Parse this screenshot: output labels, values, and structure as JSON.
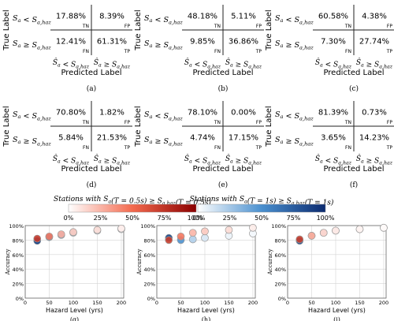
{
  "labels": {
    "true_label": "True Label",
    "predicted_label": "Predicted Label",
    "row_top": "S_a < S_{a,haz}",
    "row_bottom": "S_a ≥ S_{a,haz}",
    "col_left": "Ŝ_a < S_{a,haz}",
    "col_right": "Ŝ_a ≥ S_{a,haz}",
    "tn": "TN",
    "fp": "FP",
    "fn": "FN",
    "tp": "TP"
  },
  "matrices": [
    {
      "panel": "(a)",
      "tn": "17.88%",
      "fp": "8.39%",
      "fn": "12.41%",
      "tp": "61.31%"
    },
    {
      "panel": "(b)",
      "tn": "48.18%",
      "fp": "5.11%",
      "fn": "9.85%",
      "tp": "36.86%"
    },
    {
      "panel": "(c)",
      "tn": "60.58%",
      "fp": "4.38%",
      "fn": "7.30%",
      "tp": "27.74%"
    },
    {
      "panel": "(d)",
      "tn": "70.80%",
      "fp": "1.82%",
      "fn": "5.84%",
      "tp": "21.53%"
    },
    {
      "panel": "(e)",
      "tn": "78.10%",
      "fp": "0.00%",
      "fn": "4.74%",
      "tp": "17.15%"
    },
    {
      "panel": "(f)",
      "tn": "81.39%",
      "fp": "0.73%",
      "fn": "3.65%",
      "tp": "14.23%"
    }
  ],
  "legend": {
    "red_title": "Stations with S_a(T = 0.5s) ≥ S_{a,haz}(T = 0.5s)",
    "blue_title": "Stations with S_a(T = 1s) ≥ S_{a,haz}(T = 1s)",
    "ticks": [
      "0%",
      "25%",
      "50%",
      "75%",
      "100%"
    ],
    "red_color": "#8b0000",
    "blue_color": "#0b2a6f"
  },
  "chart_data": [
    {
      "type": "scatter",
      "panel": "(g)",
      "xlabel": "Hazard Level (yrs)",
      "ylabel": "Accuracy",
      "xlim": [
        0,
        205
      ],
      "ylim": [
        0,
        1.0
      ],
      "xticks": [
        "0",
        "50",
        "100",
        "150",
        "200"
      ],
      "yticks": [
        "0%",
        "20%",
        "40%",
        "60%",
        "80%",
        "100%"
      ],
      "grid": true,
      "red": [
        {
          "x": 25,
          "y": 0.82,
          "frac": 0.72
        },
        {
          "x": 50,
          "y": 0.85,
          "frac": 0.45
        },
        {
          "x": 75,
          "y": 0.88,
          "frac": 0.28
        },
        {
          "x": 100,
          "y": 0.91,
          "frac": 0.18
        },
        {
          "x": 150,
          "y": 0.94,
          "frac": 0.12
        },
        {
          "x": 200,
          "y": 0.96,
          "frac": 0.06
        }
      ],
      "blue": [
        {
          "x": 25,
          "y": 0.79,
          "frac": 0.85
        },
        {
          "x": 50,
          "y": 0.84,
          "frac": 0.55
        },
        {
          "x": 75,
          "y": 0.87,
          "frac": 0.35
        },
        {
          "x": 100,
          "y": 0.9,
          "frac": 0.2
        },
        {
          "x": 150,
          "y": 0.93,
          "frac": 0.08
        },
        {
          "x": 200,
          "y": 0.95,
          "frac": 0.05
        }
      ]
    },
    {
      "type": "scatter",
      "panel": "(h)",
      "xlabel": "Hazard Level (yrs)",
      "ylabel": "Accuracy",
      "xlim": [
        0,
        205
      ],
      "ylim": [
        0,
        1.0
      ],
      "xticks": [
        "0",
        "50",
        "100",
        "150",
        "200"
      ],
      "yticks": [
        "0%",
        "20%",
        "40%",
        "60%",
        "80%",
        "100%"
      ],
      "grid": true,
      "red": [
        {
          "x": 25,
          "y": 0.8,
          "frac": 0.7
        },
        {
          "x": 50,
          "y": 0.85,
          "frac": 0.45
        },
        {
          "x": 75,
          "y": 0.9,
          "frac": 0.25
        },
        {
          "x": 100,
          "y": 0.92,
          "frac": 0.18
        },
        {
          "x": 150,
          "y": 0.94,
          "frac": 0.12
        },
        {
          "x": 200,
          "y": 0.97,
          "frac": 0.06
        }
      ],
      "blue": [
        {
          "x": 25,
          "y": 0.83,
          "frac": 0.8
        },
        {
          "x": 50,
          "y": 0.8,
          "frac": 0.45
        },
        {
          "x": 75,
          "y": 0.81,
          "frac": 0.2
        },
        {
          "x": 100,
          "y": 0.83,
          "frac": 0.1
        },
        {
          "x": 150,
          "y": 0.86,
          "frac": 0.05
        },
        {
          "x": 200,
          "y": 0.89,
          "frac": 0.03
        }
      ]
    },
    {
      "type": "scatter",
      "panel": "(i)",
      "xlabel": "Hazard Level (yrs)",
      "ylabel": "Accuracy",
      "xlim": [
        0,
        205
      ],
      "ylim": [
        0,
        1.0
      ],
      "xticks": [
        "0",
        "50",
        "100",
        "150",
        "200"
      ],
      "yticks": [
        "0%",
        "20%",
        "40%",
        "60%",
        "80%",
        "100%"
      ],
      "grid": true,
      "red": [
        {
          "x": 25,
          "y": 0.81,
          "frac": 0.7
        },
        {
          "x": 50,
          "y": 0.86,
          "frac": 0.3
        },
        {
          "x": 75,
          "y": 0.9,
          "frac": 0.15
        },
        {
          "x": 100,
          "y": 0.93,
          "frac": 0.08
        },
        {
          "x": 150,
          "y": 0.95,
          "frac": 0.04
        },
        {
          "x": 200,
          "y": 0.97,
          "frac": 0.02
        }
      ],
      "blue": [
        {
          "x": 25,
          "y": 0.79,
          "frac": 0.8
        },
        {
          "x": 50,
          "y": 0.86,
          "frac": 0.12
        },
        {
          "x": 75,
          "y": 0.9,
          "frac": 0.06
        },
        {
          "x": 100,
          "y": 0.93,
          "frac": 0.03
        },
        {
          "x": 150,
          "y": 0.95,
          "frac": 0.02
        },
        {
          "x": 200,
          "y": 0.97,
          "frac": 0.01
        }
      ]
    }
  ]
}
